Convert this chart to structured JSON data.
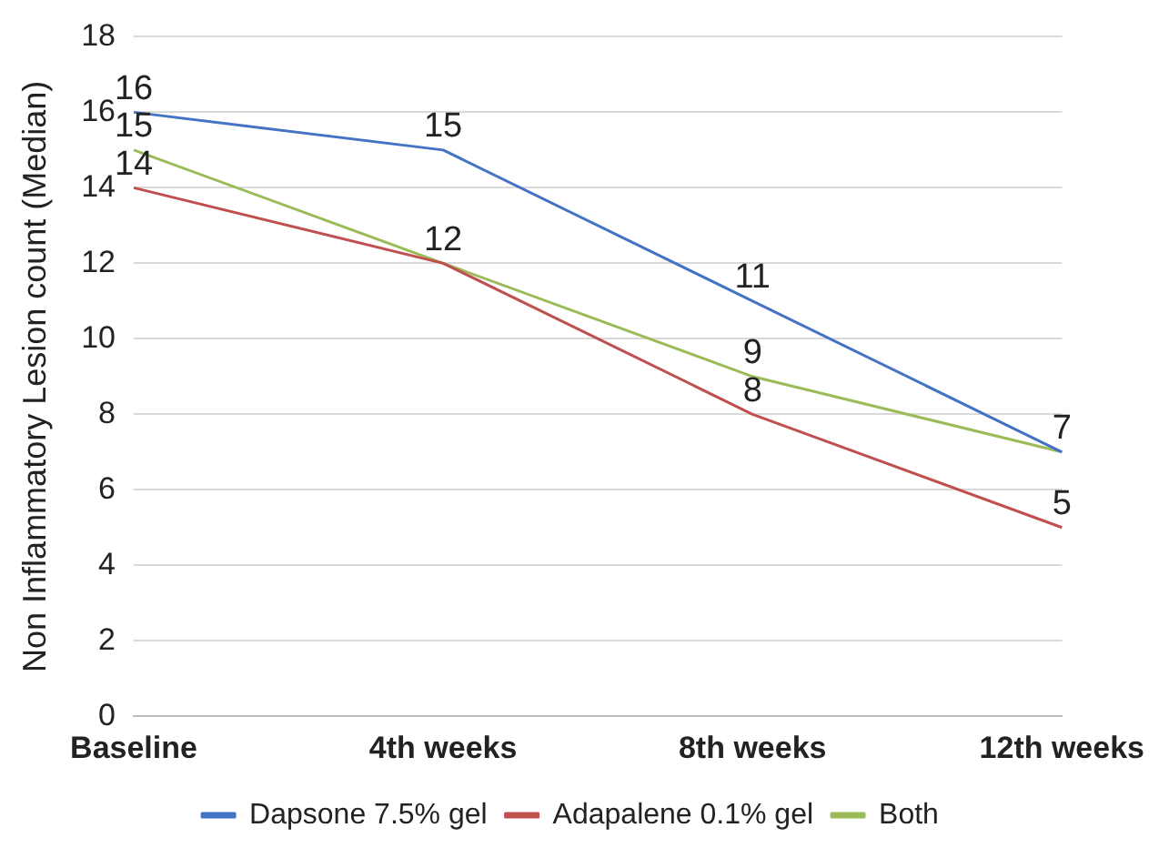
{
  "chart_data": {
    "type": "line",
    "ylabel": "Non Inflammatory Lesion count (Median)",
    "categories": [
      "Baseline",
      "4th weeks",
      "8th weeks",
      "12th weeks"
    ],
    "series": [
      {
        "name": "Dapsone 7.5% gel",
        "color": "#4472c4",
        "values": [
          16,
          15,
          11,
          7
        ],
        "value_labels": [
          "16",
          "15",
          "11",
          null
        ]
      },
      {
        "name": "Adapalene 0.1% gel",
        "color": "#c0504d",
        "values": [
          14,
          12,
          8,
          5
        ],
        "value_labels": [
          "14",
          null,
          "8",
          "5"
        ]
      },
      {
        "name": "Both",
        "color": "#9bbb59",
        "values": [
          15,
          12,
          9,
          7
        ],
        "value_labels": [
          "15",
          "12",
          "9",
          "7"
        ]
      }
    ],
    "ylim": [
      0,
      18
    ],
    "yticks": [
      0,
      2,
      4,
      6,
      8,
      10,
      12,
      14,
      16,
      18
    ],
    "grid": "y",
    "legend": "bottom",
    "marker": "none",
    "line_style": "solid"
  }
}
